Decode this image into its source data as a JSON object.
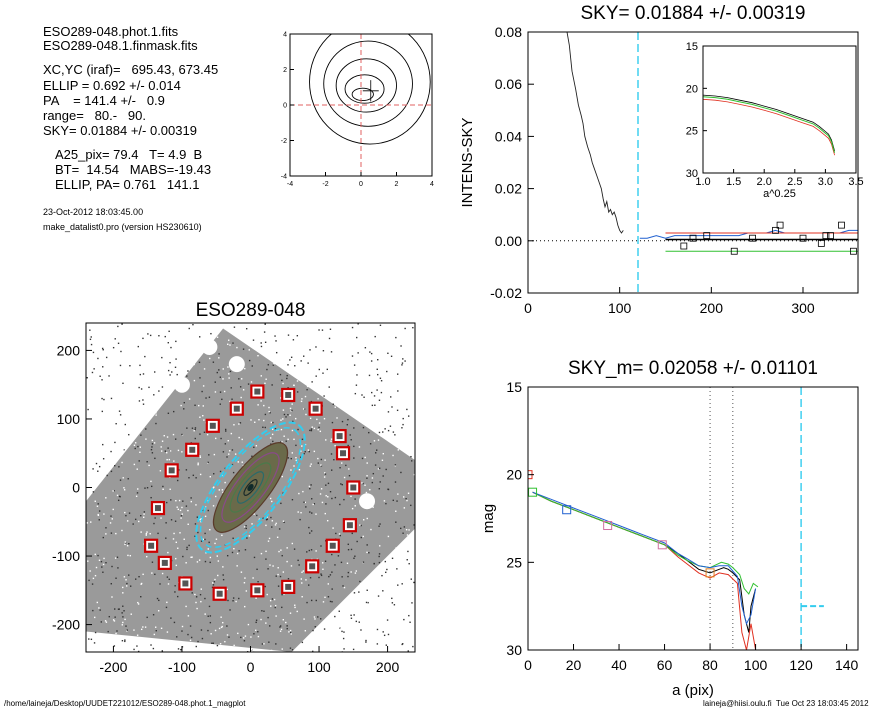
{
  "header": {
    "lines": [
      "ESO289-048.phot.1.fits",
      "ESO289-048.1.finmask.fits"
    ],
    "params": [
      "XC,YC (iraf)=   695.43, 673.45",
      "ELLIP = 0.692 +/- 0.014",
      "PA    = 141.4 +/-   0.9",
      "range=   80.-   90.",
      "SKY= 0.01884 +/- 0.00319"
    ],
    "params2": [
      "A25_pix= 79.4   T= 4.9  B",
      "BT=  14.54   MABS=-19.43",
      "ELLIP, PA= 0.761   141.1"
    ],
    "date": "23-Oct-2012 18:03:45.00",
    "program": "make_datalist0.pro (version HS230610)"
  },
  "footer": {
    "left": "/home/laineja/Desktop/UUDET221012/ESO289-048.phot.1_magplot",
    "right": "laineja@hiisi.oulu.fi  Tue Oct 23 18:03:45 2012"
  },
  "colors": {
    "ellipse_cyan": "#33ccee",
    "mask_red": "#cc0000",
    "red": "#e03020",
    "green": "#30c030",
    "blue": "#2060d0",
    "orange": "#e08020",
    "pink": "#d070a0"
  },
  "chart_data": [
    {
      "id": "contour",
      "type": "contour",
      "xlim": [
        -4,
        4
      ],
      "ylim": [
        -4,
        4
      ],
      "xticks": [
        -4,
        -2,
        0,
        2,
        4
      ],
      "yticks": [
        -4,
        -2,
        0,
        2,
        4
      ],
      "ellipses": [
        {
          "a": 0.6,
          "b": 0.35,
          "cx": 0.1,
          "cy": 0.6
        },
        {
          "a": 1.1,
          "b": 0.8,
          "cx": 0.2,
          "cy": 0.9
        },
        {
          "a": 1.7,
          "b": 1.5,
          "cx": 0.3,
          "cy": 1.1
        },
        {
          "a": 2.5,
          "b": 2.4,
          "cx": 0.4,
          "cy": 1.2
        },
        {
          "a": 3.4,
          "b": 3.5,
          "cx": 0.5,
          "cy": 1.3
        }
      ]
    },
    {
      "id": "sky",
      "type": "line",
      "title": "SKY= 0.01884 +/- 0.00319",
      "ylabel": "INTENS-SKY",
      "xlim": [
        0,
        360
      ],
      "ylim": [
        -0.02,
        0.08
      ],
      "xticks": [
        0,
        100,
        200,
        300
      ],
      "yticks": [
        -0.02,
        0.0,
        0.02,
        0.04,
        0.06,
        0.08
      ],
      "ytick_labels": [
        "-0.02",
        "0.00",
        "0.02",
        "0.04",
        "0.06",
        "0.08"
      ],
      "vline_x": 120,
      "profile": [
        [
          40,
          0.085
        ],
        [
          45,
          0.075
        ],
        [
          48,
          0.065
        ],
        [
          52,
          0.058
        ],
        [
          55,
          0.052
        ],
        [
          58,
          0.048
        ],
        [
          60,
          0.045
        ],
        [
          62,
          0.04
        ],
        [
          65,
          0.036
        ],
        [
          68,
          0.033
        ],
        [
          70,
          0.03
        ],
        [
          72,
          0.028
        ],
        [
          75,
          0.025
        ],
        [
          78,
          0.022
        ],
        [
          80,
          0.02
        ],
        [
          82,
          0.016
        ],
        [
          84,
          0.013
        ],
        [
          86,
          0.015
        ],
        [
          88,
          0.011
        ],
        [
          90,
          0.012
        ],
        [
          92,
          0.01
        ],
        [
          94,
          0.011
        ],
        [
          96,
          0.009
        ],
        [
          98,
          0.006
        ],
        [
          100,
          0.004
        ],
        [
          102,
          0.003
        ],
        [
          104,
          0.004
        ]
      ],
      "outer_blue": [
        [
          122,
          0.001
        ],
        [
          130,
          0.001
        ],
        [
          140,
          0.002
        ],
        [
          150,
          0.001
        ],
        [
          160,
          0.002
        ],
        [
          170,
          0.002
        ],
        [
          180,
          0.002
        ],
        [
          190,
          0.002
        ],
        [
          200,
          0.002
        ],
        [
          210,
          0.002
        ],
        [
          220,
          0.002
        ],
        [
          230,
          0.002
        ],
        [
          240,
          0.003
        ],
        [
          250,
          0.003
        ],
        [
          260,
          0.003
        ],
        [
          270,
          0.004
        ],
        [
          280,
          0.003
        ],
        [
          290,
          0.003
        ],
        [
          300,
          0.003
        ],
        [
          310,
          0.003
        ],
        [
          320,
          0.003
        ],
        [
          330,
          0.003
        ],
        [
          340,
          0.003
        ],
        [
          350,
          0.004
        ],
        [
          360,
          0.004
        ]
      ],
      "squares": [
        [
          170,
          -0.002
        ],
        [
          180,
          0.001
        ],
        [
          195,
          0.002
        ],
        [
          225,
          -0.004
        ],
        [
          245,
          0.001
        ],
        [
          270,
          0.004
        ],
        [
          275,
          0.006
        ],
        [
          300,
          0.001
        ],
        [
          320,
          -0.001
        ],
        [
          325,
          0.002
        ],
        [
          330,
          0.002
        ],
        [
          342,
          0.006
        ],
        [
          355,
          -0.004
        ]
      ],
      "fit_black": [
        [
          150,
          0.0005
        ],
        [
          360,
          0.0005
        ]
      ],
      "fit_red": [
        [
          150,
          0.003
        ],
        [
          360,
          0.003
        ]
      ],
      "fit_green": [
        [
          150,
          -0.004
        ],
        [
          360,
          -0.004
        ]
      ],
      "inset": {
        "xlabel": "a^0.25",
        "xlim": [
          1.0,
          3.5
        ],
        "ylim": [
          15,
          30
        ],
        "xticks": [
          1.0,
          1.5,
          2.0,
          2.5,
          3.0,
          3.5
        ],
        "xtick_labels": [
          "1.0",
          "1.5",
          "2.0",
          "2.5",
          "3.0",
          "3.5"
        ],
        "yticks": [
          15,
          20,
          25,
          30
        ],
        "curve": [
          [
            1.0,
            21.0
          ],
          [
            1.2,
            21.1
          ],
          [
            1.4,
            21.3
          ],
          [
            1.6,
            21.6
          ],
          [
            1.8,
            21.9
          ],
          [
            2.0,
            22.3
          ],
          [
            2.2,
            22.7
          ],
          [
            2.4,
            23.2
          ],
          [
            2.6,
            23.7
          ],
          [
            2.8,
            24.2
          ],
          [
            2.9,
            24.7
          ],
          [
            3.0,
            25.3
          ],
          [
            3.05,
            25.6
          ],
          [
            3.1,
            26.3
          ],
          [
            3.15,
            27.6
          ]
        ]
      }
    },
    {
      "id": "image",
      "type": "image",
      "title": "ESO289-048",
      "xlim": [
        -240,
        240
      ],
      "ylim": [
        -240,
        240
      ],
      "xticks": [
        -200,
        -100,
        0,
        100,
        200
      ],
      "yticks": [
        -200,
        -100,
        0,
        100,
        200
      ],
      "masks": [
        [
          10,
          140
        ],
        [
          -20,
          115
        ],
        [
          55,
          135
        ],
        [
          -55,
          90
        ],
        [
          95,
          115
        ],
        [
          -85,
          55
        ],
        [
          130,
          75
        ],
        [
          135,
          50
        ],
        [
          -115,
          25
        ],
        [
          150,
          0
        ],
        [
          -135,
          -30
        ],
        [
          145,
          -55
        ],
        [
          -145,
          -85
        ],
        [
          120,
          -85
        ],
        [
          -125,
          -110
        ],
        [
          90,
          -115
        ],
        [
          -95,
          -140
        ],
        [
          55,
          -145
        ],
        [
          -45,
          -155
        ],
        [
          10,
          -150
        ]
      ],
      "ellipse_cyan": {
        "a": 115,
        "b": 45,
        "pa_deg": 52
      },
      "isophotes": [
        {
          "a": 80,
          "b": 28
        },
        {
          "a": 62,
          "b": 21
        },
        {
          "a": 44,
          "b": 15
        },
        {
          "a": 28,
          "b": 10
        },
        {
          "a": 14,
          "b": 5
        }
      ]
    },
    {
      "id": "mag",
      "type": "line",
      "title": "SKY_m=  0.02058 +/- 0.01101",
      "xlabel": "a (pix)",
      "ylabel": "mag",
      "xlim": [
        0,
        145
      ],
      "ylim": [
        15,
        30
      ],
      "xticks": [
        0,
        20,
        40,
        60,
        80,
        100,
        120,
        140
      ],
      "yticks": [
        15,
        20,
        25,
        30
      ],
      "dotted_x": [
        80,
        90
      ],
      "dashed_x": 120,
      "dashed_segment": {
        "x": [
          120,
          130
        ],
        "y": 27.5
      },
      "series": [
        {
          "color": "black",
          "points": [
            [
              2,
              21.0
            ],
            [
              10,
              21.5
            ],
            [
              20,
              22.0
            ],
            [
              30,
              22.5
            ],
            [
              40,
              23.0
            ],
            [
              50,
              23.5
            ],
            [
              60,
              24.0
            ],
            [
              66,
              24.5
            ],
            [
              70,
              24.9
            ],
            [
              75,
              25.4
            ],
            [
              80,
              25.6
            ],
            [
              84,
              25.4
            ],
            [
              86,
              25.3
            ],
            [
              88,
              25.4
            ],
            [
              90,
              25.6
            ],
            [
              93,
              26.0
            ],
            [
              95,
              28.0
            ],
            [
              97,
              29.0
            ],
            [
              98,
              27.5
            ],
            [
              100,
              26.5
            ]
          ]
        },
        {
          "color": "red",
          "points": [
            [
              2,
              21.0
            ],
            [
              10,
              21.5
            ],
            [
              20,
              22.0
            ],
            [
              30,
              22.5
            ],
            [
              40,
              23.0
            ],
            [
              50,
              23.5
            ],
            [
              60,
              24.0
            ],
            [
              66,
              24.7
            ],
            [
              70,
              25.1
            ],
            [
              75,
              25.6
            ],
            [
              80,
              25.9
            ],
            [
              84,
              25.6
            ],
            [
              88,
              25.7
            ],
            [
              92,
              26.2
            ],
            [
              94,
              29.0
            ],
            [
              96,
              30.0
            ],
            [
              98,
              28.5
            ],
            [
              100,
              30.0
            ]
          ]
        },
        {
          "color": "green",
          "points": [
            [
              2,
              21.0
            ],
            [
              10,
              21.5
            ],
            [
              20,
              22.0
            ],
            [
              30,
              22.5
            ],
            [
              40,
              23.0
            ],
            [
              50,
              23.5
            ],
            [
              60,
              24.0
            ],
            [
              66,
              24.6
            ],
            [
              70,
              24.9
            ],
            [
              75,
              25.2
            ],
            [
              80,
              25.3
            ],
            [
              85,
              25.0
            ],
            [
              88,
              25.1
            ],
            [
              90,
              25.3
            ],
            [
              93,
              25.7
            ],
            [
              95,
              26.5
            ],
            [
              97,
              26.8
            ],
            [
              99,
              26.2
            ],
            [
              101,
              26.4
            ]
          ]
        },
        {
          "color": "blue",
          "points": [
            [
              2,
              21.0
            ],
            [
              10,
              21.4
            ],
            [
              20,
              21.9
            ],
            [
              30,
              22.4
            ],
            [
              40,
              22.9
            ],
            [
              50,
              23.4
            ],
            [
              60,
              23.9
            ],
            [
              66,
              24.5
            ],
            [
              70,
              24.8
            ],
            [
              75,
              25.2
            ],
            [
              80,
              25.3
            ],
            [
              84,
              25.2
            ],
            [
              88,
              25.2
            ],
            [
              92,
              25.8
            ],
            [
              94,
              27.5
            ],
            [
              96,
              28.5
            ],
            [
              98,
              28.0
            ],
            [
              100,
              26.5
            ]
          ]
        }
      ],
      "squares": [
        {
          "x": 0,
          "y": 20.0,
          "color": "red"
        },
        {
          "x": 2,
          "y": 21.0,
          "color": "green"
        },
        {
          "x": 17,
          "y": 22.0,
          "color": "blue"
        },
        {
          "x": 35,
          "y": 22.9,
          "color": "pink"
        },
        {
          "x": 59,
          "y": 24.0,
          "color": "pink"
        },
        {
          "x": 80,
          "y": 25.6,
          "color": "orange"
        }
      ]
    }
  ]
}
